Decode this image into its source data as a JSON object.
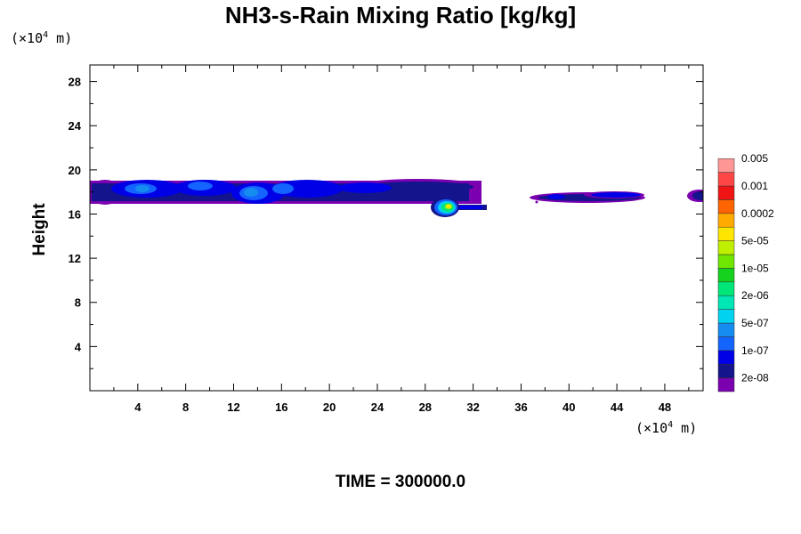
{
  "chart_data": {
    "type": "heatmap",
    "title": "NH3-s-Rain Mixing Ratio [kg/kg]",
    "xlabel": "",
    "ylabel": "Height",
    "x_unit": {
      "prefix": "(×10",
      "exp": "4",
      "suffix": " m)"
    },
    "y_unit": {
      "prefix": "(×10",
      "exp": "4",
      "suffix": " m)"
    },
    "xlim": [
      0,
      51.2
    ],
    "ylim": [
      0,
      29.5
    ],
    "x_ticks": [
      4,
      8,
      12,
      16,
      20,
      24,
      28,
      32,
      36,
      40,
      44,
      48
    ],
    "x_tick_labels": [
      "4",
      "8",
      "12",
      "16",
      "20",
      "24",
      "28",
      "32",
      "36",
      "40",
      "44",
      "48"
    ],
    "y_ticks": [
      4,
      8,
      12,
      16,
      20,
      24,
      28
    ],
    "y_tick_labels": [
      "4",
      "8",
      "12",
      "16",
      "20",
      "24",
      "28"
    ],
    "colorbar": {
      "levels": [
        "2e-08",
        "1e-07",
        "5e-07",
        "2e-06",
        "1e-05",
        "5e-05",
        "0.0002",
        "0.001",
        "0.005"
      ],
      "colors": [
        "#7a00b0",
        "#14148c",
        "#0000e6",
        "#1464ff",
        "#148cf0",
        "#00d2f0",
        "#00e6b4",
        "#00e678",
        "#14d21e",
        "#6ee600",
        "#bef000",
        "#ffe600",
        "#ffaa00",
        "#ff6400",
        "#f01414",
        "#ff4646",
        "#ff9696"
      ]
    },
    "regions": [
      {
        "x": [
          0,
          33
        ],
        "y": [
          17.6,
          19.3
        ],
        "max_level": "5e-07",
        "desc": "main rain band"
      },
      {
        "x": [
          28.5,
          31
        ],
        "y": [
          15.9,
          17.3
        ],
        "max_level": "1e-05",
        "desc": "peak core"
      },
      {
        "x": [
          31,
          33.5
        ],
        "y": [
          16.6,
          17.0
        ],
        "max_level": "1e-07",
        "desc": "tail"
      },
      {
        "x": [
          37.5,
          46.5
        ],
        "y": [
          17.1,
          18.5
        ],
        "max_level": "1e-07",
        "desc": "eastern band"
      },
      {
        "x": [
          49.5,
          51.2
        ],
        "y": [
          17.2,
          18.4
        ],
        "max_level": "1e-07",
        "desc": "edge band"
      }
    ]
  },
  "time_label": "TIME = 300000.0"
}
